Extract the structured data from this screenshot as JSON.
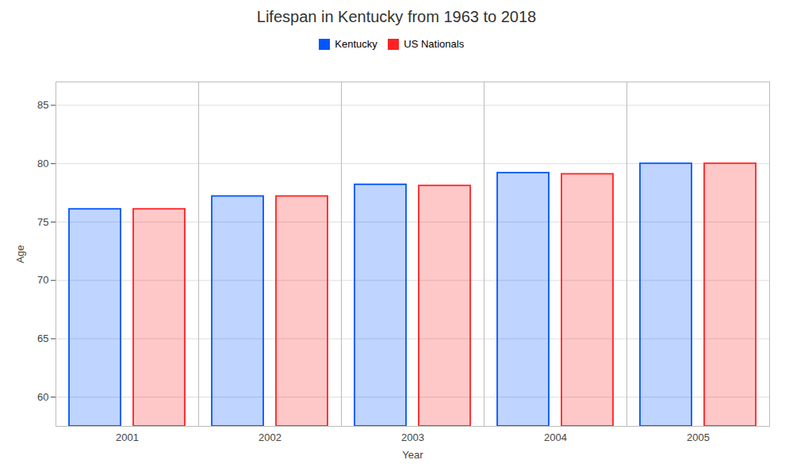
{
  "chart_data": {
    "type": "bar",
    "title": "Lifespan in Kentucky from 1963 to 2018",
    "xlabel": "Year",
    "ylabel": "Age",
    "categories": [
      "2001",
      "2002",
      "2003",
      "2004",
      "2005"
    ],
    "series": [
      {
        "name": "Kentucky",
        "color": "#0055ff",
        "values": [
          76.1,
          77.2,
          78.2,
          79.2,
          80.0
        ]
      },
      {
        "name": "US Nationals",
        "color": "#ff2222",
        "values": [
          76.1,
          77.2,
          78.1,
          79.1,
          80.0
        ]
      }
    ],
    "ylim": [
      57.5,
      87
    ],
    "yticks": [
      60,
      65,
      70,
      75,
      80,
      85
    ],
    "grid": true,
    "legend": "top"
  }
}
